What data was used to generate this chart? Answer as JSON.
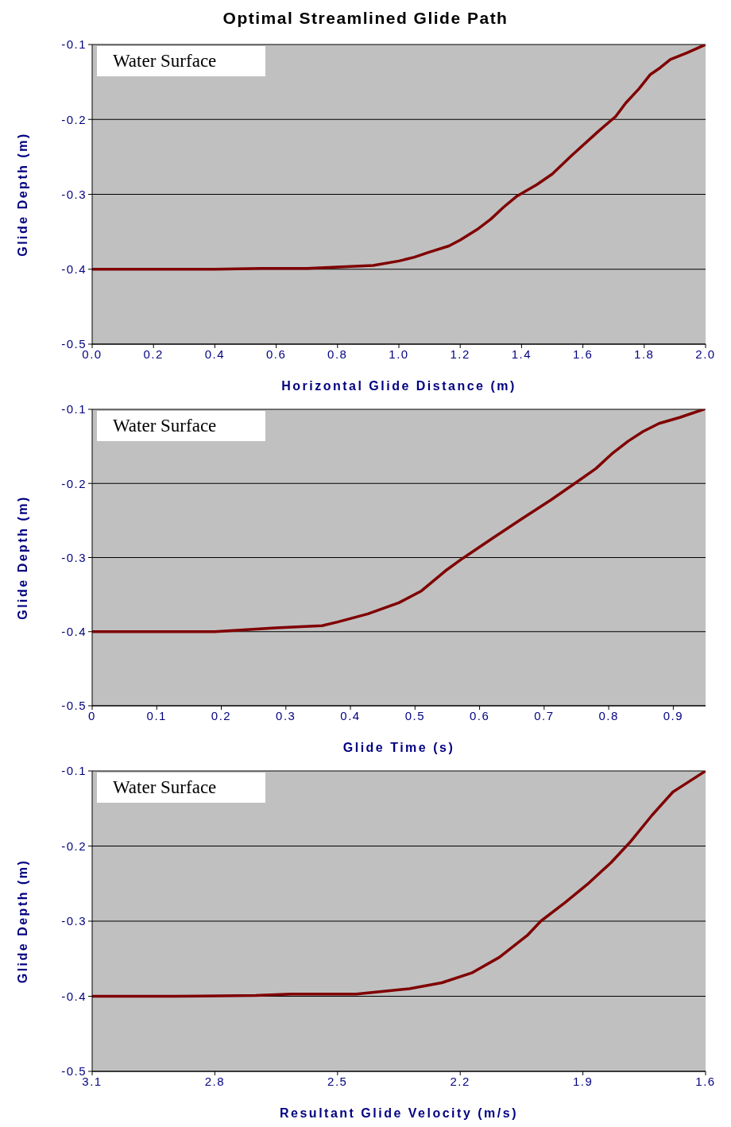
{
  "chart_data": [
    {
      "type": "line",
      "title": "Optimal Streamlined Glide Path",
      "xlabel": "Horizontal Glide Distance (m)",
      "ylabel": "Glide Depth (m)",
      "annotations": [
        "Water Surface"
      ],
      "grid": "y",
      "xlim": [
        0,
        2
      ],
      "xticks": [
        {
          "value": 0,
          "label": "0.0"
        },
        0.2,
        0.4,
        0.6,
        0.8,
        {
          "value": 1,
          "label": "1.0"
        },
        1.2,
        1.4,
        1.6,
        1.8,
        {
          "value": 2,
          "label": "2.0"
        }
      ],
      "ylim": [
        -0.5,
        -0.1
      ],
      "yticks": [
        -0.5,
        -0.4,
        -0.3,
        -0.2,
        -0.1
      ],
      "series": [
        {
          "color": "#800000",
          "x": [
            0,
            0.4,
            0.55,
            0.7,
            0.8,
            0.916,
            1.0,
            1.05,
            1.1,
            1.163,
            1.2,
            1.255,
            1.3,
            1.342,
            1.383,
            1.45,
            1.5,
            1.561,
            1.65,
            1.707,
            1.74,
            1.783,
            1.82,
            1.852,
            1.885,
            1.94,
            2.0
          ],
          "values": [
            -0.4,
            -0.4,
            -0.399,
            -0.399,
            -0.397,
            -0.395,
            -0.389,
            -0.384,
            -0.377,
            -0.369,
            -0.361,
            -0.347,
            -0.333,
            -0.317,
            -0.303,
            -0.287,
            -0.273,
            -0.249,
            -0.216,
            -0.196,
            -0.178,
            -0.159,
            -0.14,
            -0.131,
            -0.12,
            -0.111,
            -0.1
          ]
        }
      ]
    },
    {
      "type": "line",
      "xlabel": "Glide Time (s)",
      "ylabel": "Glide Depth (m)",
      "annotations": [
        "Water Surface"
      ],
      "grid": "y",
      "xlim": [
        0,
        0.95
      ],
      "xticks": [
        0,
        0.1,
        0.2,
        0.3,
        0.4,
        0.5,
        0.6,
        0.7,
        0.8,
        0.9
      ],
      "ylim": [
        -0.5,
        -0.1
      ],
      "yticks": [
        -0.5,
        -0.4,
        -0.3,
        -0.2,
        -0.1
      ],
      "series": [
        {
          "color": "#800000",
          "x": [
            0,
            0.1,
            0.19,
            0.284,
            0.356,
            0.38,
            0.427,
            0.475,
            0.51,
            0.547,
            0.574,
            0.62,
            0.665,
            0.711,
            0.754,
            0.78,
            0.805,
            0.83,
            0.853,
            0.878,
            0.91,
            0.947
          ],
          "values": [
            -0.4,
            -0.4,
            -0.4,
            -0.395,
            -0.392,
            -0.387,
            -0.376,
            -0.361,
            -0.345,
            -0.318,
            -0.301,
            -0.274,
            -0.248,
            -0.222,
            -0.196,
            -0.18,
            -0.16,
            -0.143,
            -0.13,
            -0.119,
            -0.111,
            -0.1
          ]
        }
      ]
    },
    {
      "type": "line",
      "xlabel": "Resultant Glide Velocity (m/s)",
      "ylabel": "Glide Depth (m)",
      "annotations": [
        "Water Surface"
      ],
      "grid": "y",
      "xlim": [
        3.1,
        1.6
      ],
      "xticks": [
        3.1,
        2.8,
        2.5,
        2.2,
        1.9,
        1.6
      ],
      "ylim": [
        -0.5,
        -0.1
      ],
      "yticks": [
        -0.5,
        -0.4,
        -0.3,
        -0.2,
        -0.1
      ],
      "series": [
        {
          "color": "#800000",
          "x": [
            3.1,
            2.9,
            2.7,
            2.614,
            2.454,
            2.324,
            2.245,
            2.172,
            2.104,
            2.036,
            2.003,
            1.943,
            1.885,
            1.831,
            1.785,
            1.731,
            1.68,
            1.657,
            1.6
          ],
          "values": [
            -0.4,
            -0.4,
            -0.399,
            -0.397,
            -0.397,
            -0.39,
            -0.382,
            -0.369,
            -0.348,
            -0.319,
            -0.3,
            -0.275,
            -0.249,
            -0.222,
            -0.195,
            -0.159,
            -0.128,
            -0.12,
            -0.1
          ]
        }
      ]
    }
  ]
}
